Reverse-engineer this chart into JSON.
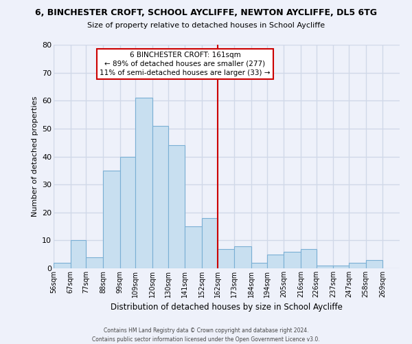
{
  "title": "6, BINCHESTER CROFT, SCHOOL AYCLIFFE, NEWTON AYCLIFFE, DL5 6TG",
  "subtitle": "Size of property relative to detached houses in School Aycliffe",
  "xlabel": "Distribution of detached houses by size in School Aycliffe",
  "ylabel": "Number of detached properties",
  "bin_labels": [
    "56sqm",
    "67sqm",
    "77sqm",
    "88sqm",
    "99sqm",
    "109sqm",
    "120sqm",
    "130sqm",
    "141sqm",
    "152sqm",
    "162sqm",
    "173sqm",
    "184sqm",
    "194sqm",
    "205sqm",
    "216sqm",
    "226sqm",
    "237sqm",
    "247sqm",
    "258sqm",
    "269sqm"
  ],
  "bin_edges": [
    56,
    67,
    77,
    88,
    99,
    109,
    120,
    130,
    141,
    152,
    162,
    173,
    184,
    194,
    205,
    216,
    226,
    237,
    247,
    258,
    269
  ],
  "bar_heights": [
    2,
    10,
    4,
    35,
    40,
    61,
    51,
    44,
    15,
    18,
    7,
    8,
    2,
    5,
    6,
    7,
    1,
    1,
    2,
    3
  ],
  "bar_color": "#c8dff0",
  "bar_edge_color": "#7aafd4",
  "ylim": [
    0,
    80
  ],
  "yticks": [
    0,
    10,
    20,
    30,
    40,
    50,
    60,
    70,
    80
  ],
  "vline_x": 162,
  "vline_color": "#cc0000",
  "annotation_title": "6 BINCHESTER CROFT: 161sqm",
  "annotation_line1": "← 89% of detached houses are smaller (277)",
  "annotation_line2": "11% of semi-detached houses are larger (33) →",
  "footer_line1": "Contains HM Land Registry data © Crown copyright and database right 2024.",
  "footer_line2": "Contains public sector information licensed under the Open Government Licence v3.0.",
  "bg_color": "#eef1fa",
  "grid_color": "#d0d8e8"
}
